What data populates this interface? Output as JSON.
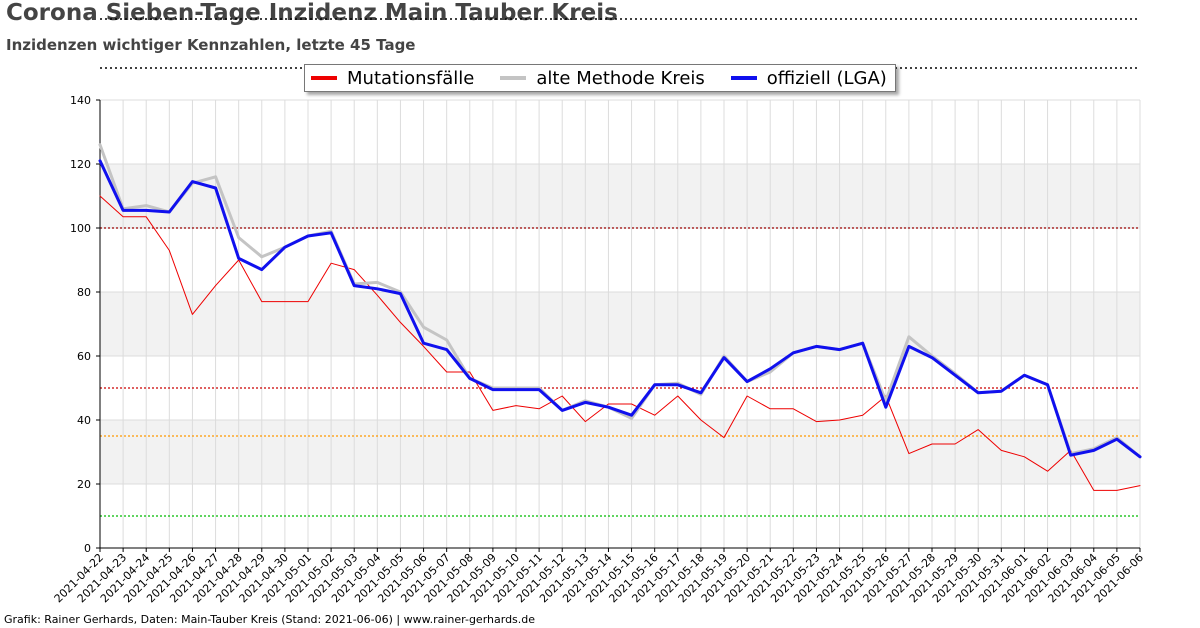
{
  "header": {
    "title": "Corona Sieben-Tage Inzidenz Main Tauber Kreis",
    "subtitle": "Inzidenzen wichtiger Kennzahlen, letzte 45 Tage"
  },
  "footer": {
    "credit": "Grafik: Rainer Gerhards, Daten: Main-Tauber Kreis (Stand: 2021-06-06) | www.rainer-gerhards.de"
  },
  "chart_data": {
    "type": "line",
    "title": "Corona Sieben-Tage Inzidenz Main Tauber Kreis",
    "subtitle": "Inzidenzen wichtiger Kennzahlen, letzte 45 Tage",
    "xlabel": "",
    "ylabel": "",
    "ylim": [
      0,
      140
    ],
    "yticks": [
      0,
      20,
      40,
      60,
      80,
      100,
      120,
      140
    ],
    "grid": true,
    "legend_position": "top-center",
    "x": [
      "2021-04-22",
      "2021-04-23",
      "2021-04-24",
      "2021-04-25",
      "2021-04-26",
      "2021-04-27",
      "2021-04-28",
      "2021-04-29",
      "2021-04-30",
      "2021-05-01",
      "2021-05-02",
      "2021-05-03",
      "2021-05-04",
      "2021-05-05",
      "2021-05-06",
      "2021-05-07",
      "2021-05-08",
      "2021-05-09",
      "2021-05-10",
      "2021-05-11",
      "2021-05-12",
      "2021-05-13",
      "2021-05-14",
      "2021-05-15",
      "2021-05-16",
      "2021-05-17",
      "2021-05-18",
      "2021-05-19",
      "2021-05-20",
      "2021-05-21",
      "2021-05-22",
      "2021-05-23",
      "2021-05-24",
      "2021-05-25",
      "2021-05-26",
      "2021-05-27",
      "2021-05-28",
      "2021-05-29",
      "2021-05-30",
      "2021-05-31",
      "2021-06-01",
      "2021-06-02",
      "2021-06-03",
      "2021-06-04",
      "2021-06-05",
      "2021-06-06"
    ],
    "series": [
      {
        "name": "Mutationsfälle",
        "color": "#ee0000",
        "width": 1,
        "values": [
          110,
          103.5,
          103.5,
          93,
          73,
          82,
          90,
          77,
          77,
          77,
          89,
          87,
          79,
          70.5,
          63,
          55,
          55,
          43,
          44.5,
          43.5,
          47.5,
          39.5,
          45,
          45,
          41.5,
          47.5,
          40,
          34.5,
          47.5,
          43.5,
          43.5,
          39.5,
          40,
          41.5,
          47.5,
          29.5,
          32.5,
          32.5,
          37,
          30.5,
          28.5,
          24,
          30.5,
          18,
          18,
          19.5
        ]
      },
      {
        "name": "alte Methode Kreis",
        "color": "#c4c4c4",
        "width": 3,
        "values": [
          126,
          106,
          107,
          105,
          114,
          116,
          97,
          91,
          94,
          97.5,
          99,
          82.5,
          83,
          80,
          69,
          65,
          53,
          50,
          50,
          50,
          43,
          46,
          44,
          40.5,
          51,
          51.5,
          48,
          60,
          52,
          55,
          61,
          63,
          62,
          64,
          46,
          66,
          60,
          54.5,
          48.5,
          49,
          54,
          51,
          29.5,
          31,
          34.5,
          28.5
        ]
      },
      {
        "name": "offiziell (LGA)",
        "color": "#1010ee",
        "width": 3,
        "values": [
          121,
          105.5,
          105.5,
          105,
          114.5,
          112.5,
          90.5,
          87,
          94,
          97.5,
          98.5,
          82,
          81,
          79.5,
          64,
          62,
          53,
          49.5,
          49.5,
          49.5,
          43,
          45.5,
          44,
          41.5,
          51,
          51,
          48.5,
          59.5,
          52,
          56,
          61,
          63,
          62,
          64,
          44,
          63,
          59.5,
          54,
          48.5,
          49,
          54,
          51,
          29,
          30.5,
          34,
          28.5
        ]
      }
    ],
    "reference_lines": [
      {
        "value": 100,
        "color": "#990000"
      },
      {
        "value": 50,
        "color": "#cc0000"
      },
      {
        "value": 35,
        "color": "#ff9900"
      },
      {
        "value": 10,
        "color": "#00bb00"
      }
    ]
  }
}
